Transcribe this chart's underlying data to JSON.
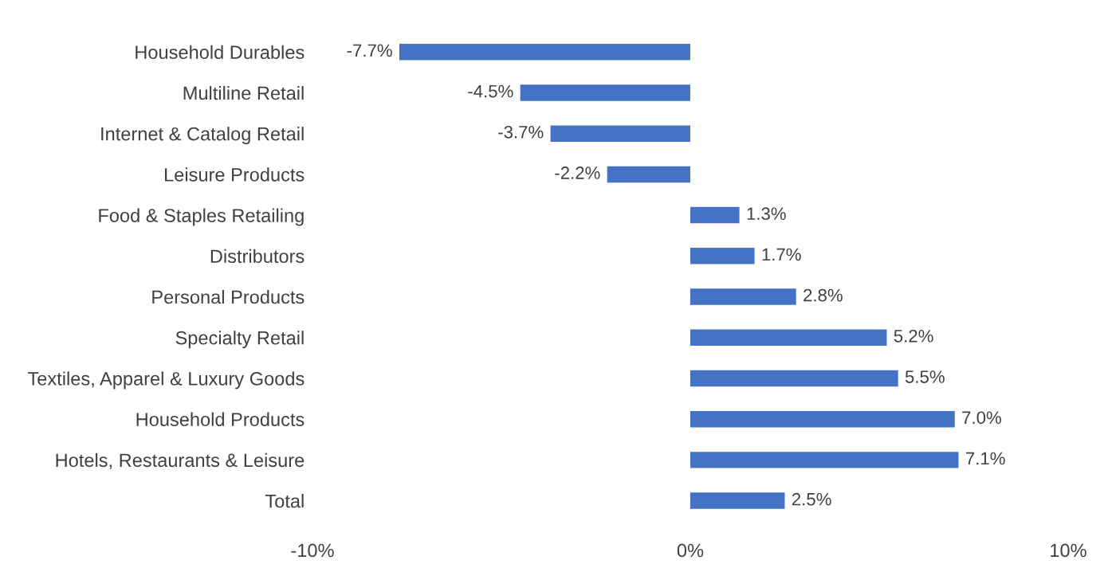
{
  "chart_data": {
    "type": "bar",
    "orientation": "horizontal",
    "categories": [
      "Household Durables",
      "Multiline Retail",
      "Internet & Catalog Retail",
      "Leisure Products",
      "Food & Staples Retailing",
      "Distributors",
      "Personal Products",
      "Specialty Retail",
      "Textiles, Apparel & Luxury Goods",
      "Household Products",
      "Hotels, Restaurants & Leisure",
      "Total"
    ],
    "values": [
      -7.7,
      -4.5,
      -3.7,
      -2.2,
      1.3,
      1.7,
      2.8,
      5.2,
      5.5,
      7.0,
      7.1,
      2.5
    ],
    "value_labels": [
      "-7.7%",
      "-4.5%",
      "-3.7%",
      "-2.2%",
      "1.3%",
      "1.7%",
      "2.8%",
      "5.2%",
      "5.5%",
      "7.0%",
      "7.1%",
      "2.5%"
    ],
    "color": "#4472c4",
    "xlim": [
      -10,
      10
    ],
    "xticks": [
      {
        "value": -10,
        "label": "-10%"
      },
      {
        "value": 0,
        "label": "0%"
      },
      {
        "value": 10,
        "label": "10%"
      }
    ],
    "grid": false,
    "legend": false
  }
}
